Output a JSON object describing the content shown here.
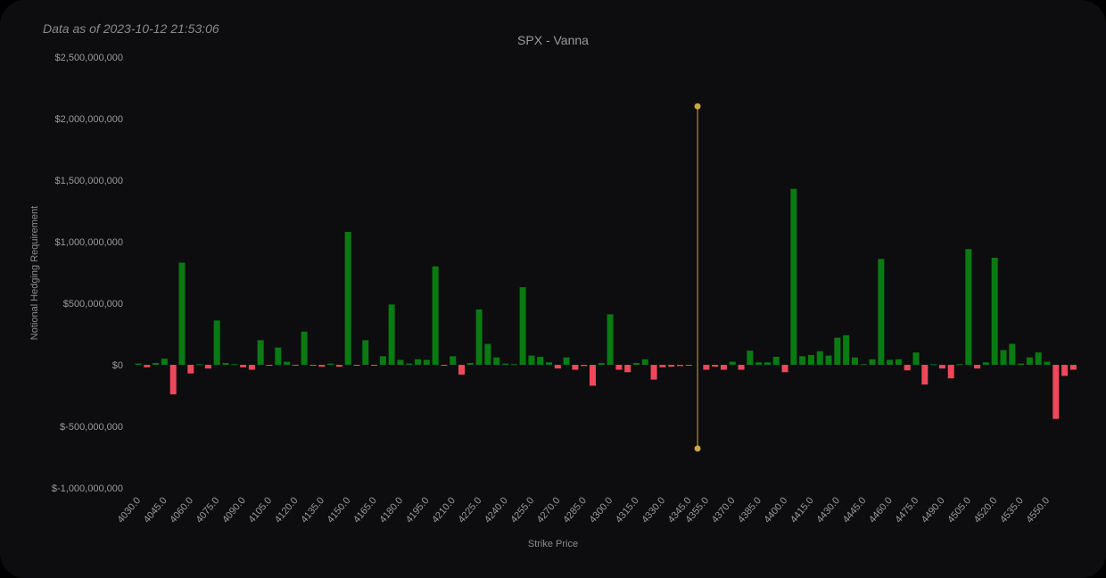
{
  "data_as_of": "Data as of 2023-10-12 21:53:06",
  "colors": {
    "positive": "#0a7a12",
    "negative": "#f0475a",
    "marker": "#c9a64a",
    "background": "#0d0d0f"
  },
  "chart_data": {
    "type": "bar",
    "title": "SPX - Vanna",
    "xlabel": "Strike Price",
    "ylabel": "Notional Hedging Requirement",
    "ylim": [
      -1000000000,
      2500000000
    ],
    "y_ticks": [
      {
        "value": 2500000000,
        "label": "$2,500,000,000"
      },
      {
        "value": 2000000000,
        "label": "$2,000,000,000"
      },
      {
        "value": 1500000000,
        "label": "$1,500,000,000"
      },
      {
        "value": 1000000000,
        "label": "$1,000,000,000"
      },
      {
        "value": 500000000,
        "label": "$500,000,000"
      },
      {
        "value": 0,
        "label": "$0"
      },
      {
        "value": -500000000,
        "label": "$-500,000,000"
      },
      {
        "value": -1000000000,
        "label": "$-1,000,000,000"
      }
    ],
    "x_tick_labels": [
      "4030.0",
      "4045.0",
      "4060.0",
      "4075.0",
      "4090.0",
      "4105.0",
      "4120.0",
      "4135.0",
      "4150.0",
      "4165.0",
      "4180.0",
      "4195.0",
      "4210.0",
      "4225.0",
      "4240.0",
      "4255.0",
      "4270.0",
      "4285.0",
      "4300.0",
      "4315.0",
      "4330.0",
      "4345.0",
      "4355.0",
      "4370.0",
      "4385.0",
      "4400.0",
      "4415.0",
      "4430.0",
      "4445.0",
      "4460.0",
      "4475.0",
      "4490.0",
      "4505.0",
      "4520.0",
      "4535.0",
      "4550.0"
    ],
    "spot_marker": {
      "x": 4350,
      "y_top": 2100000000,
      "y_bottom": -680000000
    },
    "series": [
      {
        "points": [
          [
            4030,
            10000000
          ],
          [
            4035,
            -20000000
          ],
          [
            4040,
            15000000
          ],
          [
            4045,
            50000000
          ],
          [
            4050,
            -240000000
          ],
          [
            4055,
            830000000
          ],
          [
            4060,
            -70000000
          ],
          [
            4065,
            5000000
          ],
          [
            4070,
            -30000000
          ],
          [
            4075,
            360000000
          ],
          [
            4080,
            15000000
          ],
          [
            4085,
            5000000
          ],
          [
            4090,
            -20000000
          ],
          [
            4095,
            -40000000
          ],
          [
            4100,
            200000000
          ],
          [
            4105,
            -5000000
          ],
          [
            4110,
            140000000
          ],
          [
            4115,
            25000000
          ],
          [
            4120,
            -5000000
          ],
          [
            4125,
            270000000
          ],
          [
            4130,
            -5000000
          ],
          [
            4135,
            -15000000
          ],
          [
            4140,
            10000000
          ],
          [
            4145,
            -15000000
          ],
          [
            4150,
            1080000000
          ],
          [
            4155,
            -5000000
          ],
          [
            4160,
            200000000
          ],
          [
            4165,
            -5000000
          ],
          [
            4170,
            70000000
          ],
          [
            4175,
            490000000
          ],
          [
            4180,
            40000000
          ],
          [
            4185,
            10000000
          ],
          [
            4190,
            45000000
          ],
          [
            4195,
            40000000
          ],
          [
            4200,
            800000000
          ],
          [
            4205,
            -5000000
          ],
          [
            4210,
            70000000
          ],
          [
            4215,
            -80000000
          ],
          [
            4220,
            15000000
          ],
          [
            4225,
            450000000
          ],
          [
            4230,
            170000000
          ],
          [
            4235,
            60000000
          ],
          [
            4240,
            10000000
          ],
          [
            4245,
            5000000
          ],
          [
            4250,
            630000000
          ],
          [
            4255,
            75000000
          ],
          [
            4260,
            65000000
          ],
          [
            4265,
            20000000
          ],
          [
            4270,
            -30000000
          ],
          [
            4275,
            60000000
          ],
          [
            4280,
            -40000000
          ],
          [
            4285,
            -10000000
          ],
          [
            4290,
            -170000000
          ],
          [
            4295,
            15000000
          ],
          [
            4300,
            410000000
          ],
          [
            4305,
            -40000000
          ],
          [
            4310,
            -60000000
          ],
          [
            4315,
            15000000
          ],
          [
            4320,
            45000000
          ],
          [
            4325,
            -120000000
          ],
          [
            4330,
            -20000000
          ],
          [
            4335,
            -15000000
          ],
          [
            4340,
            -10000000
          ],
          [
            4345,
            -5000000
          ],
          [
            4355,
            -40000000
          ],
          [
            4360,
            -15000000
          ],
          [
            4365,
            -40000000
          ],
          [
            4370,
            25000000
          ],
          [
            4375,
            -40000000
          ],
          [
            4380,
            115000000
          ],
          [
            4385,
            20000000
          ],
          [
            4390,
            20000000
          ],
          [
            4395,
            65000000
          ],
          [
            4400,
            -60000000
          ],
          [
            4405,
            1430000000
          ],
          [
            4410,
            70000000
          ],
          [
            4415,
            80000000
          ],
          [
            4420,
            110000000
          ],
          [
            4425,
            75000000
          ],
          [
            4430,
            220000000
          ],
          [
            4435,
            240000000
          ],
          [
            4440,
            60000000
          ],
          [
            4445,
            5000000
          ],
          [
            4450,
            45000000
          ],
          [
            4455,
            860000000
          ],
          [
            4460,
            40000000
          ],
          [
            4465,
            45000000
          ],
          [
            4470,
            -45000000
          ],
          [
            4475,
            100000000
          ],
          [
            4480,
            -160000000
          ],
          [
            4485,
            5000000
          ],
          [
            4490,
            -30000000
          ],
          [
            4495,
            -110000000
          ],
          [
            4500,
            5000000
          ],
          [
            4505,
            940000000
          ],
          [
            4510,
            -30000000
          ],
          [
            4515,
            20000000
          ],
          [
            4520,
            870000000
          ],
          [
            4525,
            120000000
          ],
          [
            4530,
            170000000
          ],
          [
            4535,
            10000000
          ],
          [
            4540,
            60000000
          ],
          [
            4545,
            100000000
          ],
          [
            4550,
            25000000
          ],
          [
            4555,
            -440000000
          ],
          [
            4560,
            -90000000
          ],
          [
            4565,
            -40000000
          ]
        ]
      }
    ]
  }
}
